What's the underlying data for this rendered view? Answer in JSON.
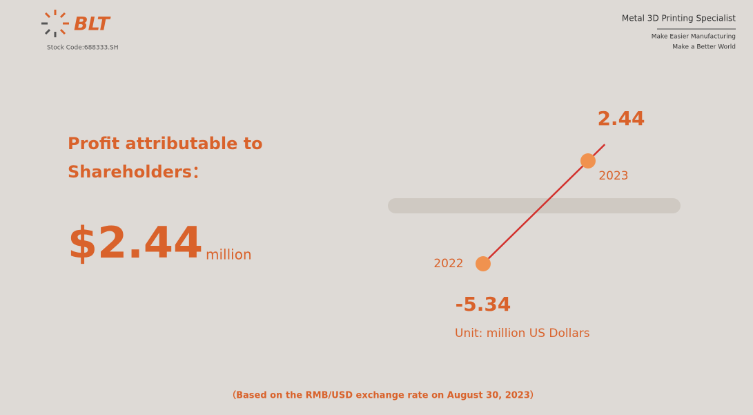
{
  "header": {
    "logo": "BLT",
    "stock_code": "Stock Code:688333.SH",
    "slogan_title": "Metal 3D Printing Specialist",
    "slogan_lines": [
      "Make Easier Manufacturing",
      "Make a Better World"
    ]
  },
  "headline": {
    "title_lines": [
      "Profit attributable to",
      "Shareholders："
    ],
    "amount": "$2.44",
    "unit": "million"
  },
  "chart_data": {
    "type": "line",
    "categories": [
      "2022",
      "2023"
    ],
    "values": [
      -5.34,
      2.44
    ],
    "color": "#d2302c",
    "marker_color": "#f0924f",
    "unit_note": "Unit: million US Dollars"
  },
  "footnote": "（Based on the RMB/USD exchange rate on August 30, 2023）"
}
